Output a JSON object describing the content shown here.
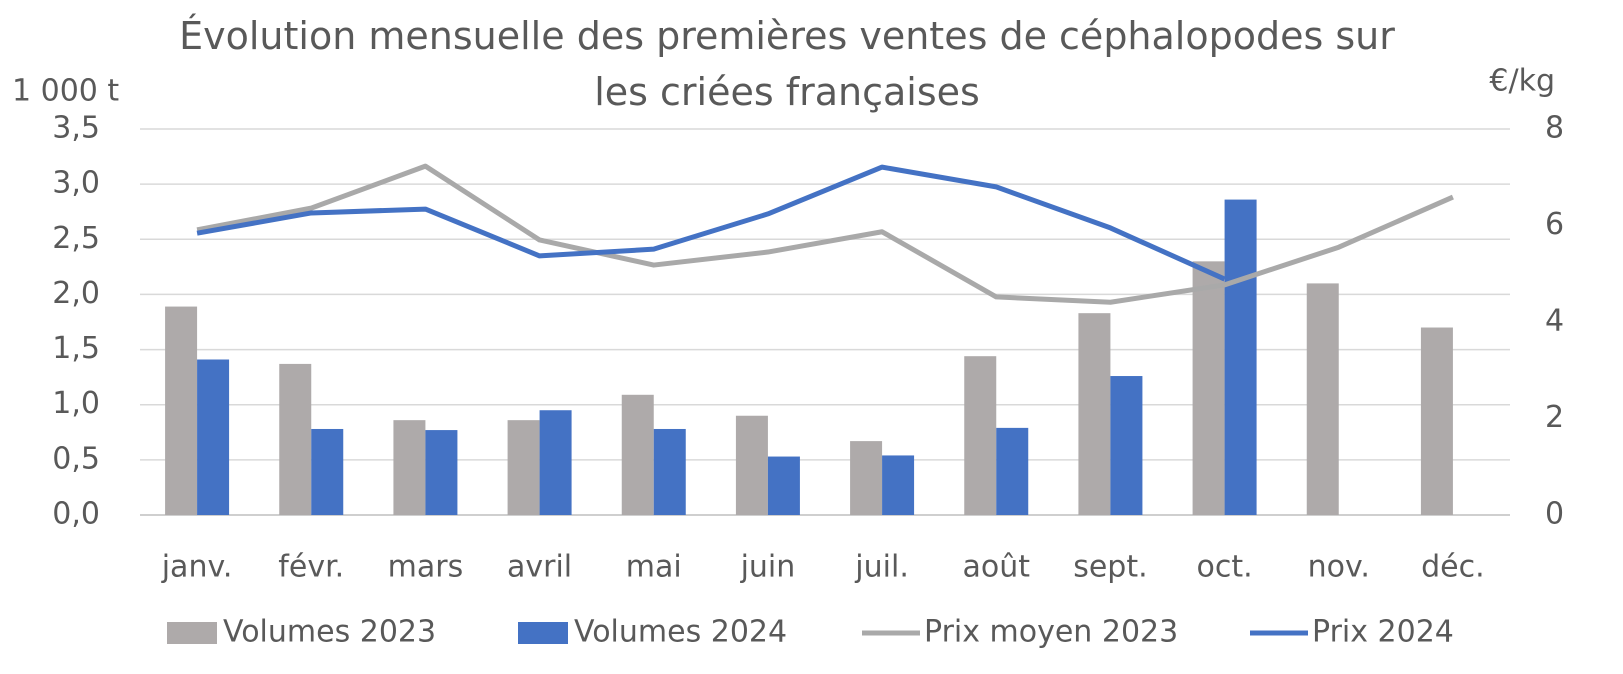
{
  "chart_data": {
    "type": "bar",
    "title": "Évolution mensuelle des premières ventes de céphalopodes sur les criées françaises",
    "y_label": "1 000 t",
    "y2_label": "€/kg",
    "categories": [
      "janv.",
      "févr.",
      "mars",
      "avril",
      "mai",
      "juin",
      "juil.",
      "août",
      "sept.",
      "oct.",
      "nov.",
      "déc."
    ],
    "series": [
      {
        "name": "Volumes 2023",
        "type": "bar",
        "color": "#aeaaaa",
        "values": [
          1.89,
          1.37,
          0.86,
          0.86,
          1.09,
          0.9,
          0.67,
          1.44,
          1.83,
          2.3,
          2.1,
          1.7
        ]
      },
      {
        "name": "Volumes 2024",
        "type": "bar",
        "color": "#4472c4",
        "values": [
          1.41,
          0.78,
          0.77,
          0.95,
          0.78,
          0.53,
          0.54,
          0.79,
          1.26,
          2.86,
          null,
          null
        ]
      },
      {
        "name": "Prix moyen 2023",
        "type": "line",
        "axis": "y2",
        "color": "#a9a9a9",
        "values": [
          5.91,
          6.36,
          7.23,
          5.7,
          5.18,
          5.45,
          5.87,
          4.52,
          4.41,
          4.77,
          5.55,
          6.59
        ]
      },
      {
        "name": "Prix 2024",
        "type": "line",
        "axis": "y2",
        "color": "#4472c4",
        "values": [
          5.84,
          6.26,
          6.34,
          5.37,
          5.51,
          6.24,
          7.21,
          6.8,
          5.95,
          4.89,
          null,
          null
        ]
      }
    ],
    "ylim": [
      0,
      3.5
    ],
    "yticks": [
      {
        "value": 0,
        "label": "0,0"
      },
      {
        "value": 0.5,
        "label": "0,5"
      },
      {
        "value": 1,
        "label": "1,0"
      },
      {
        "value": 1.5,
        "label": "1,5"
      },
      {
        "value": 2,
        "label": "2,0"
      },
      {
        "value": 2.5,
        "label": "2,5"
      },
      {
        "value": 3,
        "label": "3,0"
      },
      {
        "value": 3.5,
        "label": "3,5"
      }
    ],
    "y2lim": [
      0,
      8
    ],
    "y2ticks": [
      0,
      2,
      4,
      6,
      8
    ],
    "grid": true,
    "legend": "bottom"
  }
}
